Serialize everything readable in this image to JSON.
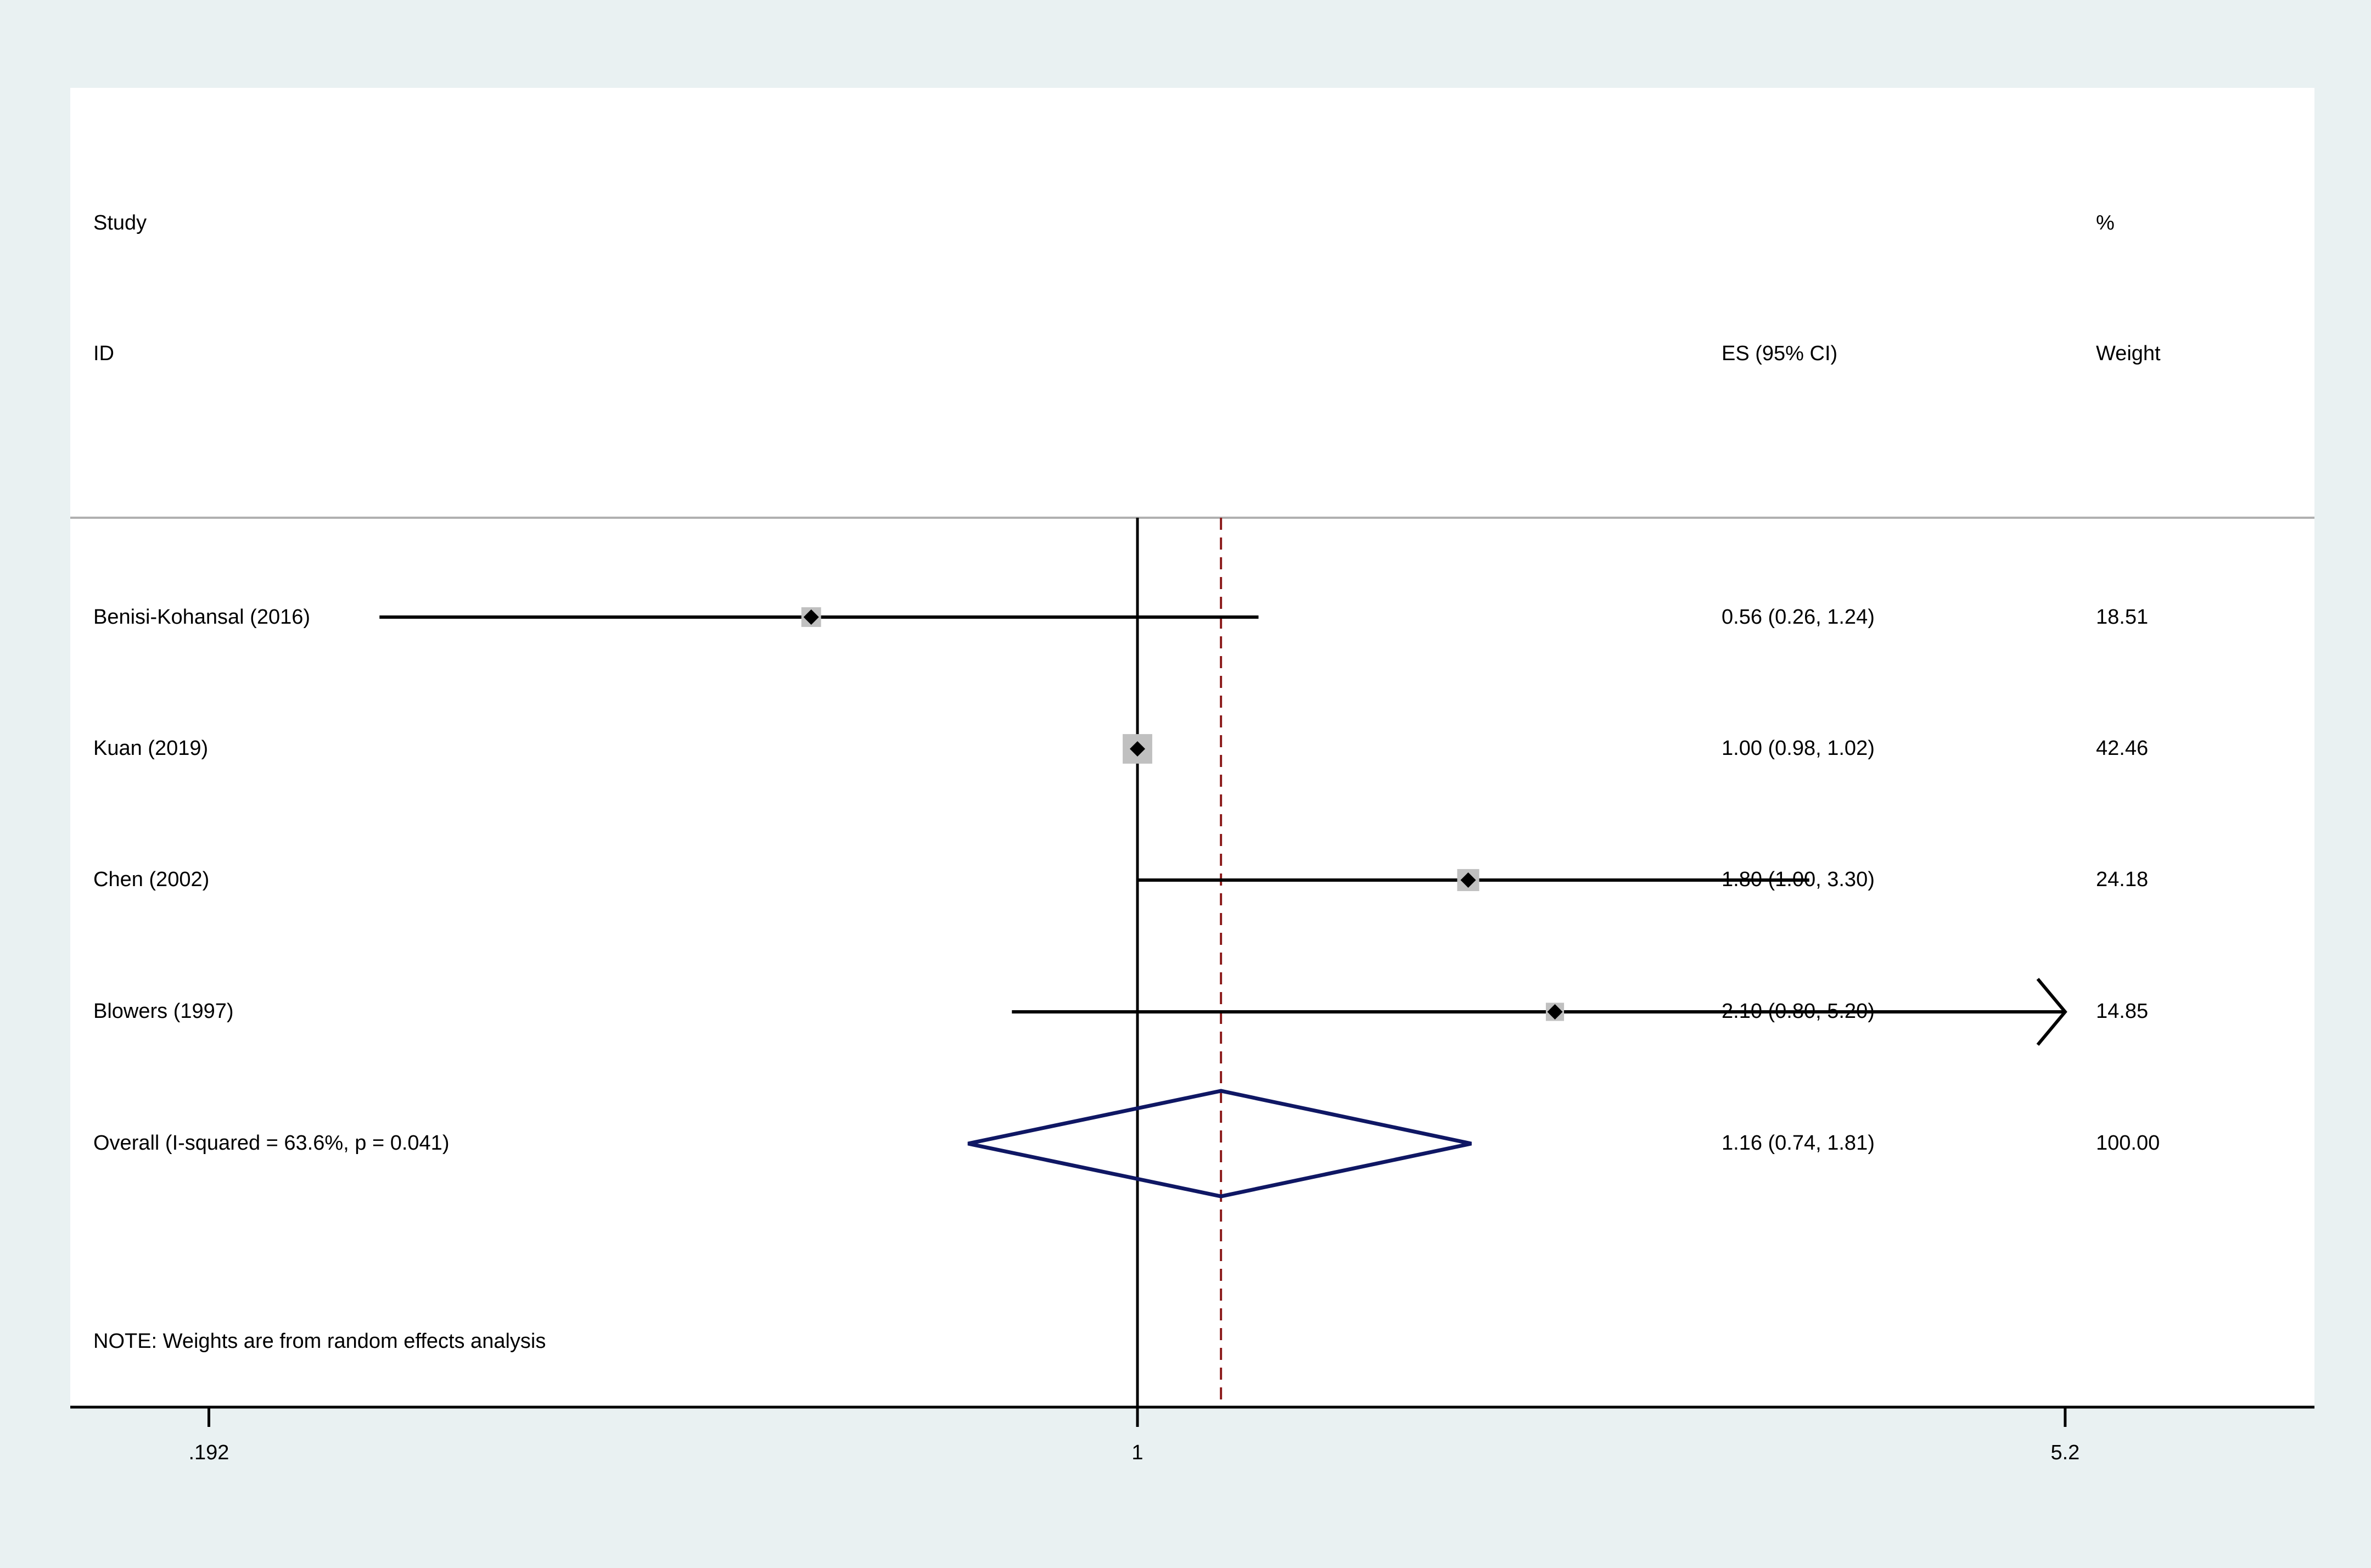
{
  "chart_data": {
    "type": "forest",
    "header": {
      "study_line1": "Study",
      "study_line2": "ID",
      "es_label": "ES (95% CI)",
      "weight_line1": "%",
      "weight_line2": "Weight"
    },
    "studies": [
      {
        "label": "Benisi-Kohansal (2016)",
        "es": 0.56,
        "lower": 0.26,
        "upper": 1.24,
        "es_text": "0.56 (0.26, 1.24)",
        "weight": 18.51,
        "weight_text": "18.51"
      },
      {
        "label": "Kuan  (2019)",
        "es": 1.0,
        "lower": 0.98,
        "upper": 1.02,
        "es_text": "1.00 (0.98, 1.02)",
        "weight": 42.46,
        "weight_text": "42.46"
      },
      {
        "label": "Chen (2002)",
        "es": 1.8,
        "lower": 1.0,
        "upper": 3.3,
        "es_text": "1.80 (1.00, 3.30)",
        "weight": 24.18,
        "weight_text": "24.18"
      },
      {
        "label": "Blowers  (1997)",
        "es": 2.1,
        "lower": 0.8,
        "upper": 5.2,
        "es_text": "2.10 (0.80, 5.20)",
        "weight": 14.85,
        "weight_text": "14.85",
        "arrow_right": true
      }
    ],
    "overall": {
      "label": "Overall  (I-squared = 63.6%, p = 0.041)",
      "es": 1.16,
      "lower": 0.74,
      "upper": 1.81,
      "es_text": "1.16 (0.74, 1.81)",
      "weight_text": "100.00"
    },
    "note": "NOTE: Weights are from random effects analysis",
    "x_axis": {
      "scale": "log",
      "ticks": [
        0.192,
        1,
        5.2
      ],
      "tick_labels": [
        ".192",
        "1",
        "5.2"
      ],
      "range": [
        0.192,
        5.2
      ]
    },
    "null_line": 1,
    "colors": {
      "background": "#e9f1f2",
      "plot": "#ffffff",
      "line": "#000000",
      "box": "#c0c0c0",
      "diamond": "#0f1764",
      "reference": "#8b1a1a",
      "separator": "#b0b0b0"
    }
  }
}
